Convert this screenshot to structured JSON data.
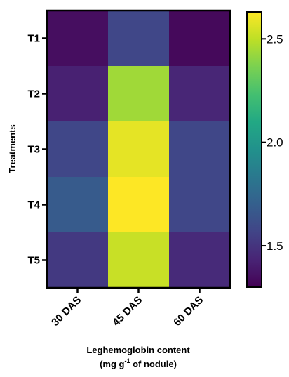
{
  "chart_data": {
    "type": "heatmap",
    "x_categories": [
      "30 DAS",
      "45 DAS",
      "60 DAS"
    ],
    "y_categories": [
      "T1",
      "T2",
      "T3",
      "T4",
      "T5"
    ],
    "values": [
      [
        1.35,
        1.58,
        1.33
      ],
      [
        1.42,
        2.44,
        1.44
      ],
      [
        1.58,
        2.58,
        1.58
      ],
      [
        1.68,
        2.63,
        1.58
      ],
      [
        1.52,
        2.52,
        1.46
      ]
    ],
    "ylabel": "Treatments",
    "xlabel_line1": "Leghemoglobin content",
    "xlabel_line2_prefix": "(mg g",
    "xlabel_line2_sup": "-1",
    "xlabel_line2_suffix": " of nodule)",
    "colorbar": {
      "colormap": "viridis",
      "range": [
        1.3,
        2.63
      ],
      "ticks": [
        1.5,
        2.0,
        2.5
      ],
      "tick_labels": [
        "1.5",
        "2.0",
        "2.5"
      ]
    }
  }
}
